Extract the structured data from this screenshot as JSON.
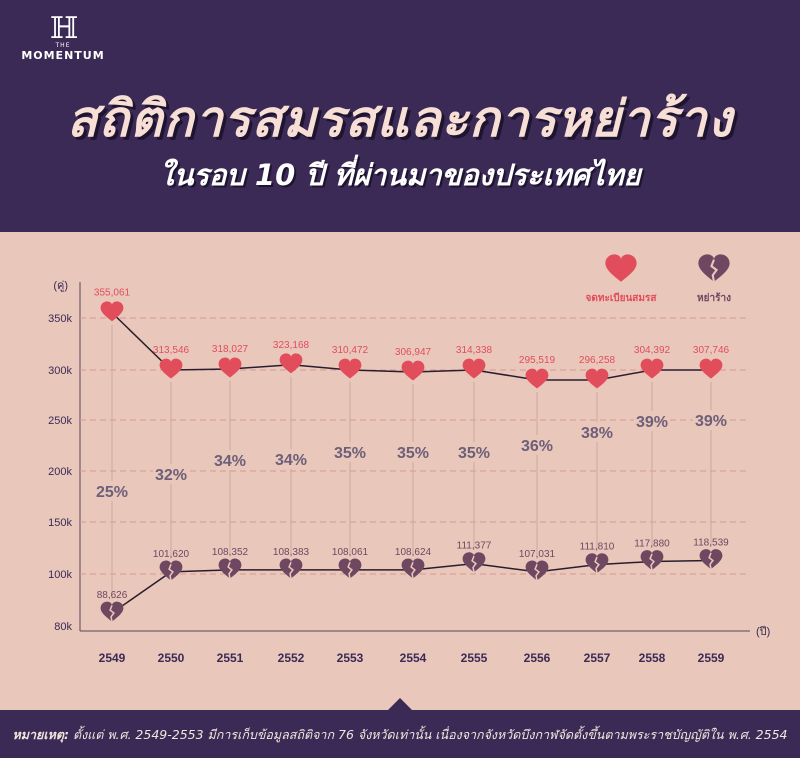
{
  "brand": {
    "logo_mark": "ℍ",
    "logo_the": "THE",
    "logo_name": "MOMENTUM"
  },
  "header": {
    "title": "สถิติการสมรสและการหย่าร้าง",
    "subtitle": "ในรอบ 10 ปี ที่ผ่านมาของประเทศไทย"
  },
  "footer": {
    "note_prefix": "หมายเหตุ:",
    "note_text": "ตั้งแต่ พ.ศ. 2549-2553 มีการเก็บข้อมูลสถิติจาก 76 จังหวัดเท่านั้น เนื่องจากจังหวัดบึงกาฬจัดตั้งขึ้นตามพระราชบัญญัติใน พ.ศ. 2554"
  },
  "colors": {
    "marriage": "#e24d5c",
    "divorce": "#6e4761",
    "line": "#2a1d2e",
    "percent": "#6d5f78",
    "grid": "#d39a92",
    "connector": "#c9a9a1"
  },
  "chart_data": {
    "type": "line",
    "y_unit_label": "(คู่)",
    "x_unit_label": "(ปี)",
    "x": [
      "2549",
      "2550",
      "2551",
      "2552",
      "2553",
      "2554",
      "2555",
      "2556",
      "2557",
      "2558",
      "2559"
    ],
    "yticks": [
      {
        "value": 80000,
        "label": "80k"
      },
      {
        "value": 100000,
        "label": "100k"
      },
      {
        "value": 150000,
        "label": "150k"
      },
      {
        "value": 200000,
        "label": "200k"
      },
      {
        "value": 250000,
        "label": "250k"
      },
      {
        "value": 300000,
        "label": "300k"
      },
      {
        "value": 350000,
        "label": "350k"
      }
    ],
    "series": [
      {
        "name": "จดทะเบียนสมรส",
        "icon": "heart-icon",
        "values": [
          355061,
          313546,
          318027,
          323168,
          310472,
          306947,
          314338,
          295519,
          296258,
          304392,
          307746
        ],
        "labels": [
          "355,061",
          "313,546",
          "318,027",
          "323,168",
          "310,472",
          "306,947",
          "314,338",
          "295,519",
          "296,258",
          "304,392",
          "307,746"
        ],
        "line_values": [
          355061,
          300000,
          301000,
          305000,
          300000,
          298000,
          300000,
          290000,
          290000,
          300000,
          300000
        ]
      },
      {
        "name": "หย่าร้าง",
        "icon": "broken-heart-icon",
        "values": [
          88626,
          101620,
          108352,
          108383,
          108061,
          108624,
          111377,
          107031,
          111810,
          117880,
          118539
        ],
        "labels": [
          "88,626",
          "101,620",
          "108,352",
          "108,383",
          "108,061",
          "108,624",
          "111,377",
          "107,031",
          "111,810",
          "117,880",
          "118,539"
        ],
        "line_values": [
          85000,
          102000,
          104000,
          104000,
          104000,
          104000,
          110000,
          102000,
          109000,
          112000,
          113000
        ]
      }
    ],
    "percent_labels": [
      "25%",
      "32%",
      "34%",
      "34%",
      "35%",
      "35%",
      "35%",
      "36%",
      "38%",
      "39%",
      "39%"
    ]
  }
}
